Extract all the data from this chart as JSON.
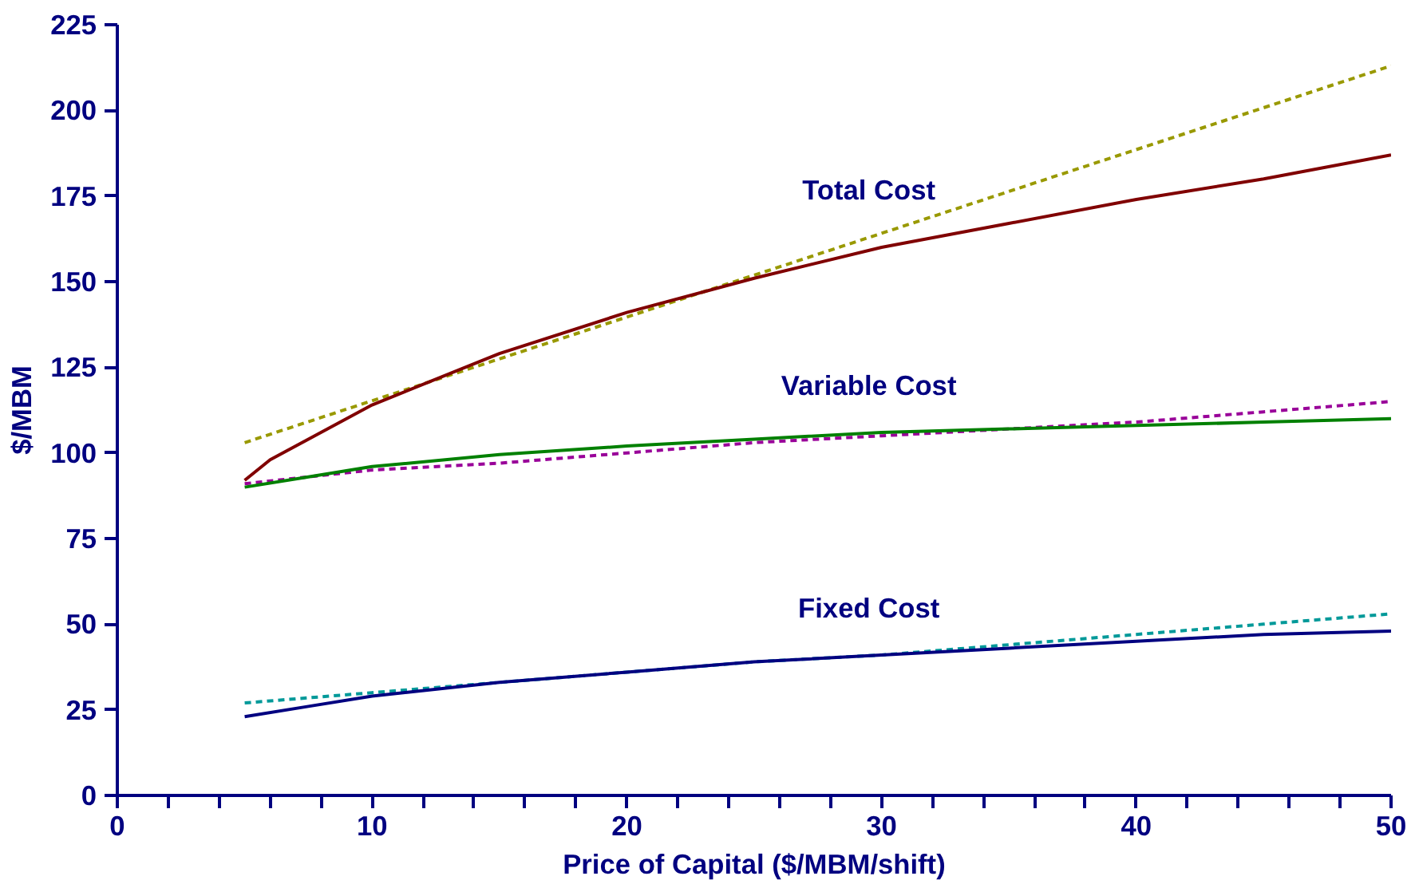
{
  "chart_data": {
    "type": "line",
    "xlabel": "Price of Capital ($/MBM/shift)",
    "ylabel": "$/MBM",
    "xlim": [
      0,
      50
    ],
    "ylim": [
      0,
      225
    ],
    "xticks": [
      0,
      {
        "value": 2,
        "label": null
      },
      {
        "value": 4,
        "label": null
      },
      {
        "value": 6,
        "label": null
      },
      {
        "value": 8,
        "label": null
      },
      10,
      {
        "value": 12,
        "label": null
      },
      {
        "value": 14,
        "label": null
      },
      {
        "value": 16,
        "label": null
      },
      {
        "value": 18,
        "label": null
      },
      20,
      {
        "value": 22,
        "label": null
      },
      {
        "value": 24,
        "label": null
      },
      {
        "value": 26,
        "label": null
      },
      {
        "value": 28,
        "label": null
      },
      30,
      {
        "value": 32,
        "label": null
      },
      {
        "value": 34,
        "label": null
      },
      {
        "value": 36,
        "label": null
      },
      {
        "value": 38,
        "label": null
      },
      40,
      {
        "value": 42,
        "label": null
      },
      {
        "value": 44,
        "label": null
      },
      {
        "value": 46,
        "label": null
      },
      {
        "value": 48,
        "label": null
      },
      50
    ],
    "yticks": [
      0,
      25,
      50,
      75,
      100,
      125,
      150,
      175,
      200,
      225
    ],
    "grid": false,
    "marker": "none",
    "series": [
      {
        "color": "#999900",
        "line_style": "dashed",
        "x": [
          5,
          50
        ],
        "values": [
          103,
          213
        ]
      },
      {
        "color": "#800000",
        "line_style": "solid",
        "x": [
          5,
          6,
          7.5,
          10,
          15,
          20,
          25,
          30,
          35,
          40,
          45,
          50
        ],
        "values": [
          92,
          98,
          104,
          114,
          129,
          141,
          151,
          160,
          167,
          174,
          180,
          187
        ]
      },
      {
        "color": "#990099",
        "line_style": "dashed",
        "x": [
          5,
          10,
          15,
          20,
          25,
          30,
          35,
          40,
          45,
          50
        ],
        "values": [
          91,
          95,
          97,
          100,
          103,
          105,
          107,
          109,
          112,
          115
        ]
      },
      {
        "color": "#008000",
        "line_style": "solid",
        "x": [
          5,
          7.5,
          10,
          15,
          20,
          25,
          30,
          35,
          40,
          45,
          50
        ],
        "values": [
          90,
          93,
          96,
          99.5,
          102,
          104,
          106,
          107,
          108,
          109,
          110
        ]
      },
      {
        "color": "#009999",
        "line_style": "dashed",
        "x": [
          5,
          10,
          15,
          20,
          25,
          30,
          35,
          40,
          45,
          50
        ],
        "values": [
          27,
          30,
          33,
          36,
          39,
          41,
          44,
          47,
          50,
          53
        ]
      },
      {
        "color": "#000080",
        "line_style": "solid",
        "x": [
          5,
          7.5,
          10,
          15,
          20,
          25,
          30,
          35,
          40,
          45,
          50
        ],
        "values": [
          23,
          26,
          29,
          33,
          36,
          39,
          41,
          43,
          45,
          47,
          48
        ]
      }
    ],
    "annotations": [
      "Total Cost",
      "Variable Cost",
      "Fixed Cost"
    ]
  }
}
